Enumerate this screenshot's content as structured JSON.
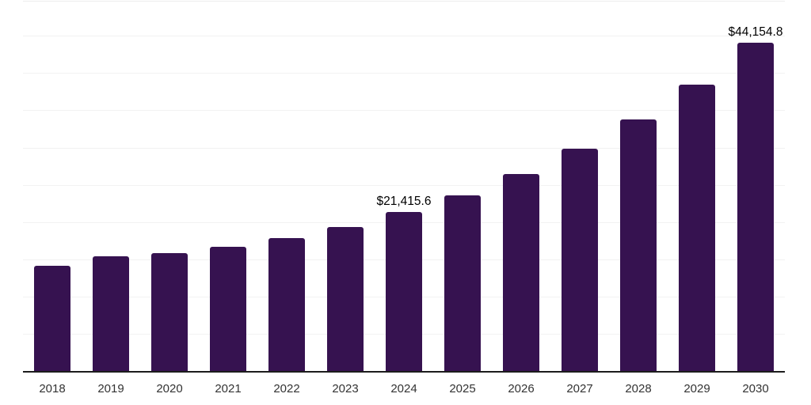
{
  "chart_data": {
    "type": "bar",
    "title": "",
    "xlabel": "",
    "ylabel": "",
    "categories": [
      "2018",
      "2019",
      "2020",
      "2021",
      "2022",
      "2023",
      "2024",
      "2025",
      "2026",
      "2027",
      "2028",
      "2029",
      "2030"
    ],
    "values": [
      14200,
      15500,
      15900,
      16800,
      17900,
      19400,
      21415.6,
      23700,
      26500,
      30000,
      33900,
      38500,
      44154.8
    ],
    "point_labels": [
      "",
      "",
      "",
      "",
      "",
      "",
      "$21,415.6",
      "",
      "",
      "",
      "",
      "",
      "$44,154.8"
    ],
    "ylim": [
      0,
      49700
    ],
    "gridline_step": 5000,
    "grid": "horizontal-only",
    "legend": "none",
    "y_tick_labels": "none"
  },
  "colors": {
    "bar": "#361250",
    "axis_line": "#1c1c1c",
    "gridline": "#f2f2f2",
    "plot_top_line": "#ededed",
    "x_tick_label": "#333333",
    "value_label": "#000000",
    "background": "#ffffff"
  }
}
